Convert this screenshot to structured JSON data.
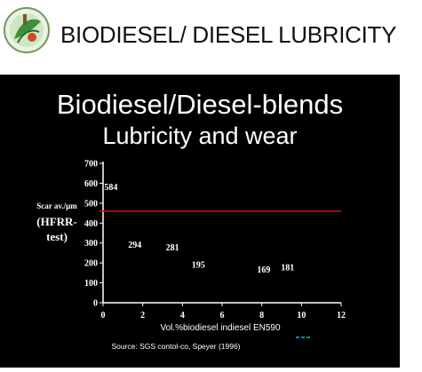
{
  "header": {
    "title": "BIODIESEL/ DIESEL LUBRICITY"
  },
  "slide": {
    "title_line1": "Biodiesel/Diesel-blends",
    "title_line2": "Lubricity and wear",
    "source": "Source: SGS contol-co, Speyer (1996)"
  },
  "colors": {
    "limit_line": "#cc1111",
    "background": "#000000",
    "accent_dash": "#33aacc"
  },
  "chart_data": {
    "type": "scatter",
    "title": "Biodiesel/Diesel-blends Lubricity and wear",
    "ylabel_lines": [
      "Scar av./µm",
      "(HFRR-",
      "test)"
    ],
    "xlabel": "Vol.%biodiesel indiesel EN590",
    "x_ticks": [
      "0",
      "2",
      "4",
      "6",
      "8",
      "10",
      "12"
    ],
    "y_ticks": [
      "0",
      "100",
      "200",
      "300",
      "400",
      "500",
      "600",
      "700"
    ],
    "xlim": [
      0,
      12
    ],
    "ylim": [
      0,
      700
    ],
    "points": [
      {
        "x": 0.4,
        "y": 584,
        "label": "584"
      },
      {
        "x": 1.6,
        "y": 294,
        "label": "294"
      },
      {
        "x": 3.5,
        "y": 281,
        "label": "281"
      },
      {
        "x": 4.8,
        "y": 195,
        "label": "195"
      },
      {
        "x": 8.1,
        "y": 169,
        "label": "169"
      },
      {
        "x": 9.3,
        "y": 181,
        "label": "181"
      }
    ],
    "limit_line": {
      "y": 460
    },
    "grid": false,
    "legend": "none"
  }
}
